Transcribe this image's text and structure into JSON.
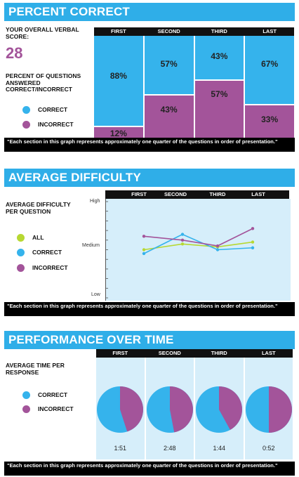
{
  "colors": {
    "correct": "#35b3ec",
    "incorrect": "#a3549a",
    "all": "#b7d832",
    "banner": "#2faee8"
  },
  "columns": [
    "FIRST",
    "SECOND",
    "THIRD",
    "LAST"
  ],
  "legend": {
    "all": "ALL",
    "correct": "CORRECT",
    "incorrect": "INCORRECT"
  },
  "footnote": "\"Each section in this graph represents approximately one quarter of the questions in order of presentation.\"",
  "section1": {
    "title": "PERCENT CORRECT",
    "score_label": "YOUR OVERALL VERBAL SCORE:",
    "score": "28",
    "subtitle": "PERCENT OF QUESTIONS ANSWERED CORRECT/INCORRECT"
  },
  "section2": {
    "title": "AVERAGE DIFFICULTY",
    "subtitle": "AVERAGE DIFFICULTY PER QUESTION",
    "y_high": "High",
    "y_medium": "Medium",
    "y_low": "Low"
  },
  "section3": {
    "title": "PERFORMANCE OVER TIME",
    "subtitle": "AVERAGE TIME PER RESPONSE",
    "times": [
      "1:51",
      "2:48",
      "1:44",
      "0:52"
    ]
  },
  "chart_data": [
    {
      "type": "bar",
      "title": "PERCENT CORRECT",
      "categories": [
        "FIRST",
        "SECOND",
        "THIRD",
        "LAST"
      ],
      "series": [
        {
          "name": "CORRECT",
          "values": [
            88,
            57,
            43,
            67
          ]
        },
        {
          "name": "INCORRECT",
          "values": [
            12,
            43,
            57,
            33
          ]
        }
      ],
      "labels_correct": [
        "88%",
        "57%",
        "43%",
        "67%"
      ],
      "labels_incorrect": [
        "12%",
        "43%",
        "57%",
        "33%"
      ],
      "ylim": [
        0,
        100
      ],
      "stacked": true
    },
    {
      "type": "line",
      "title": "AVERAGE DIFFICULTY",
      "categories": [
        "FIRST",
        "SECOND",
        "THIRD",
        "LAST"
      ],
      "ylim": [
        0,
        100
      ],
      "series": [
        {
          "name": "ALL",
          "values": [
            50,
            56,
            53,
            58
          ]
        },
        {
          "name": "CORRECT",
          "values": [
            46,
            66,
            50,
            52
          ]
        },
        {
          "name": "INCORRECT",
          "values": [
            64,
            60,
            54,
            72
          ]
        }
      ]
    },
    {
      "type": "pie",
      "title": "PERFORMANCE OVER TIME",
      "categories": [
        "FIRST",
        "SECOND",
        "THIRD",
        "LAST"
      ],
      "series": [
        {
          "name": "CORRECT",
          "values": [
            55,
            53,
            58,
            50
          ]
        },
        {
          "name": "INCORRECT",
          "values": [
            45,
            47,
            42,
            50
          ]
        }
      ],
      "time_labels": [
        "1:51",
        "2:48",
        "1:44",
        "0:52"
      ]
    }
  ]
}
